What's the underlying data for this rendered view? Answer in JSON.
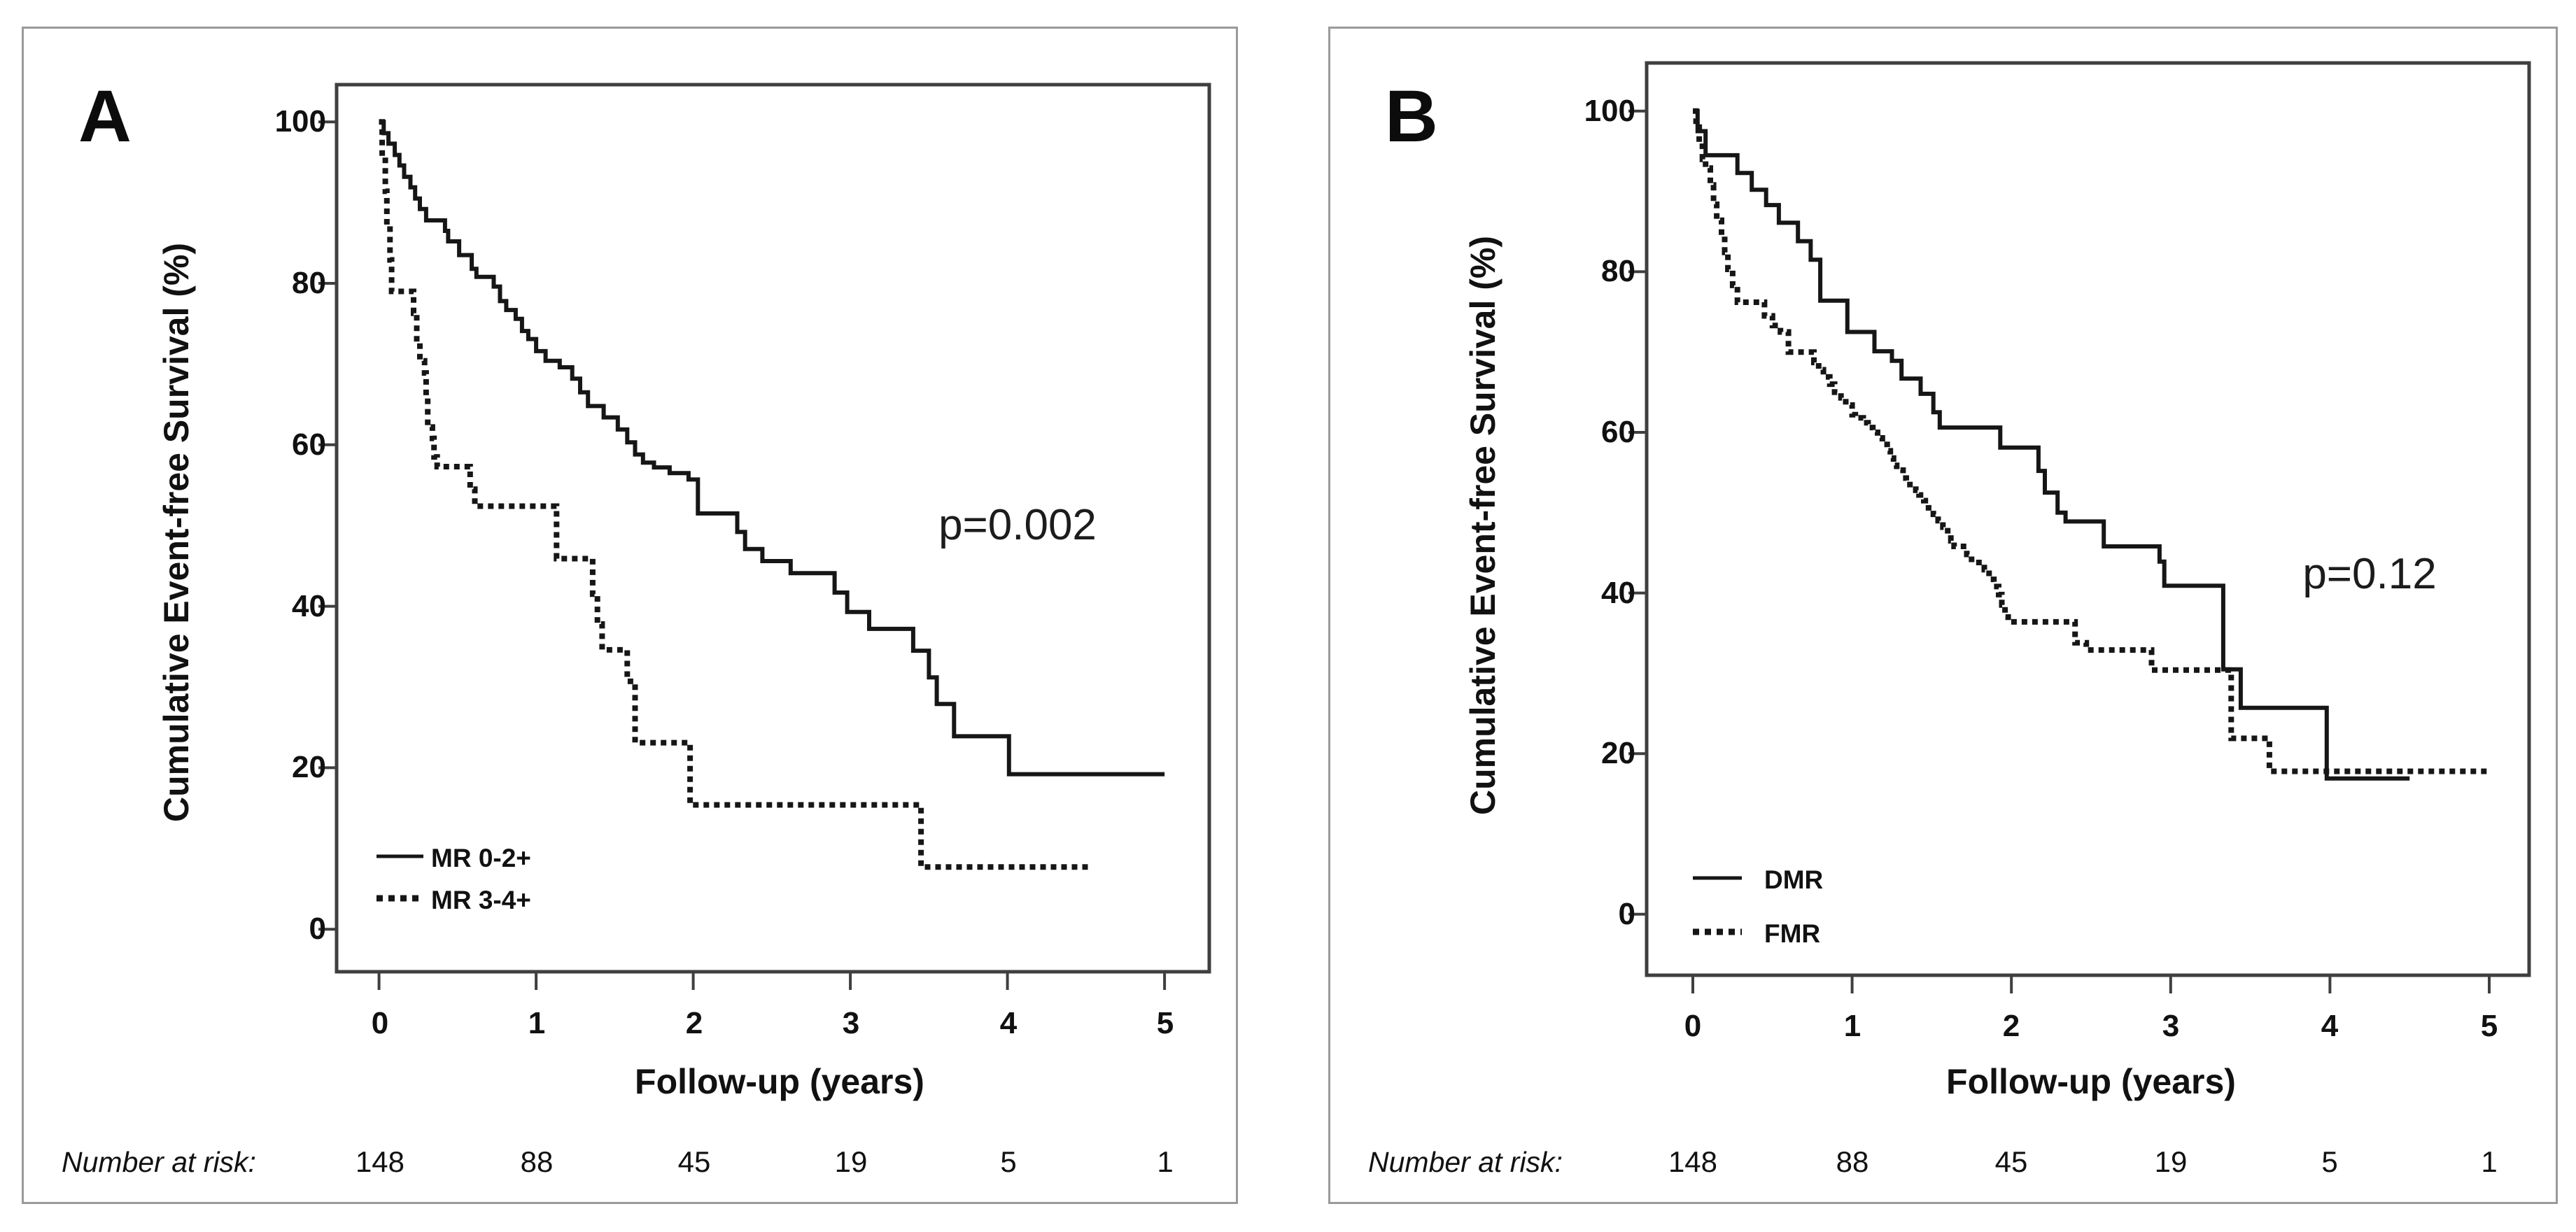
{
  "figure": {
    "background": "#ffffff",
    "panels": [
      {
        "label": "A"
      },
      {
        "label": "B"
      }
    ]
  },
  "style_colors": {
    "curve": "#161616",
    "frame": "#3f3f3f",
    "panel_border": "#9a9a9a",
    "text": "#111111"
  },
  "chart_data": [
    {
      "type": "line",
      "subtype": "kaplan_meier_step",
      "panel_label": "A",
      "xlabel": "Follow-up (years)",
      "ylabel": "Cumulative Event-free Survival (%)",
      "xlim": [
        0,
        5.3
      ],
      "ylim": [
        -6,
        105
      ],
      "xticks": [
        0,
        1,
        2,
        3,
        4,
        5
      ],
      "yticks": [
        100,
        80,
        60,
        40,
        20,
        0
      ],
      "grid": false,
      "annotation": "p=0.002",
      "legend_position": "lower-left",
      "number_at_risk": {
        "label": "Number at risk:",
        "times": [
          0,
          1,
          2,
          3,
          4,
          5
        ],
        "values": [
          148,
          88,
          45,
          19,
          5,
          1
        ]
      },
      "series": [
        {
          "name": "MR 0-2+",
          "style": "solid",
          "points": [
            [
              0,
              100
            ],
            [
              0.03,
              98.6
            ],
            [
              0.06,
              97.3
            ],
            [
              0.1,
              95.9
            ],
            [
              0.13,
              94.6
            ],
            [
              0.16,
              93.2
            ],
            [
              0.2,
              91.9
            ],
            [
              0.23,
              90.5
            ],
            [
              0.26,
              89.2
            ],
            [
              0.3,
              87.8
            ],
            [
              0.42,
              86.5
            ],
            [
              0.44,
              85.2
            ],
            [
              0.51,
              83.5
            ],
            [
              0.59,
              81.8
            ],
            [
              0.62,
              80.8
            ],
            [
              0.73,
              79.6
            ],
            [
              0.77,
              77.8
            ],
            [
              0.81,
              76.7
            ],
            [
              0.87,
              75.6
            ],
            [
              0.91,
              74.1
            ],
            [
              0.95,
              73.1
            ],
            [
              1.0,
              71.6
            ],
            [
              1.06,
              70.4
            ],
            [
              1.15,
              69.6
            ],
            [
              1.23,
              68.2
            ],
            [
              1.28,
              66.5
            ],
            [
              1.33,
              64.8
            ],
            [
              1.43,
              63.4
            ],
            [
              1.52,
              61.9
            ],
            [
              1.58,
              60.3
            ],
            [
              1.63,
              58.8
            ],
            [
              1.68,
              57.8
            ],
            [
              1.75,
              57.2
            ],
            [
              1.85,
              56.5
            ],
            [
              1.97,
              55.7
            ],
            [
              2.03,
              51.5
            ],
            [
              2.28,
              49.2
            ],
            [
              2.33,
              47.1
            ],
            [
              2.44,
              45.6
            ],
            [
              2.62,
              44.1
            ],
            [
              2.9,
              41.7
            ],
            [
              2.98,
              39.3
            ],
            [
              3.12,
              37.2
            ],
            [
              3.4,
              34.5
            ],
            [
              3.5,
              31.2
            ],
            [
              3.55,
              27.9
            ],
            [
              3.66,
              23.9
            ],
            [
              4.01,
              19.2
            ],
            [
              5,
              19.2
            ]
          ]
        },
        {
          "name": "MR 3-4+",
          "style": "dashed",
          "points": [
            [
              0,
              100
            ],
            [
              0.02,
              95.7
            ],
            [
              0.04,
              91.4
            ],
            [
              0.05,
              87.1
            ],
            [
              0.07,
              82.9
            ],
            [
              0.08,
              79
            ],
            [
              0.22,
              76.3
            ],
            [
              0.24,
              72.7
            ],
            [
              0.26,
              70.4
            ],
            [
              0.29,
              68.9
            ],
            [
              0.3,
              66
            ],
            [
              0.31,
              62.2
            ],
            [
              0.34,
              60.8
            ],
            [
              0.35,
              58.5
            ],
            [
              0.37,
              57.3
            ],
            [
              0.58,
              54.5
            ],
            [
              0.61,
              52.4
            ],
            [
              1.13,
              45.9
            ],
            [
              1.36,
              41.5
            ],
            [
              1.39,
              37.8
            ],
            [
              1.42,
              34.6
            ],
            [
              1.58,
              30.7
            ],
            [
              1.63,
              23.1
            ],
            [
              1.98,
              15.4
            ],
            [
              3.45,
              7.7
            ],
            [
              4.53,
              7.7
            ]
          ]
        }
      ]
    },
    {
      "type": "line",
      "subtype": "kaplan_meier_step",
      "panel_label": "B",
      "xlabel": "Follow-up (years)",
      "ylabel": "Cumulative Event-free Survival (%)",
      "xlim": [
        0,
        5.3
      ],
      "ylim": [
        -7,
        105
      ],
      "xticks": [
        0,
        1,
        2,
        3,
        4,
        5
      ],
      "yticks": [
        100,
        80,
        60,
        40,
        20,
        0
      ],
      "grid": false,
      "annotation": "p=0.12",
      "legend_position": "lower-left",
      "number_at_risk": {
        "label": "Number at risk:",
        "times": [
          0,
          1,
          2,
          3,
          4,
          5
        ],
        "values": [
          148,
          88,
          45,
          19,
          5,
          1
        ]
      },
      "series": [
        {
          "name": "DMR",
          "style": "solid",
          "points": [
            [
              0,
              100
            ],
            [
              0.03,
              97.5
            ],
            [
              0.08,
              94.5
            ],
            [
              0.28,
              92.3
            ],
            [
              0.37,
              90.2
            ],
            [
              0.46,
              88.3
            ],
            [
              0.54,
              86.1
            ],
            [
              0.66,
              83.8
            ],
            [
              0.74,
              81.5
            ],
            [
              0.8,
              76.4
            ],
            [
              0.97,
              72.5
            ],
            [
              1.14,
              70.1
            ],
            [
              1.25,
              68.9
            ],
            [
              1.31,
              66.7
            ],
            [
              1.43,
              64.8
            ],
            [
              1.51,
              62.5
            ],
            [
              1.55,
              60.6
            ],
            [
              1.93,
              58.1
            ],
            [
              2.17,
              55.2
            ],
            [
              2.21,
              52.5
            ],
            [
              2.29,
              50
            ],
            [
              2.34,
              48.9
            ],
            [
              2.58,
              45.8
            ],
            [
              2.93,
              43.9
            ],
            [
              2.96,
              40.9
            ],
            [
              3.33,
              30.5
            ],
            [
              3.44,
              25.7
            ],
            [
              3.98,
              16.9
            ],
            [
              4.5,
              16.9
            ]
          ]
        },
        {
          "name": "FMR",
          "style": "dashed",
          "points": [
            [
              0,
              100
            ],
            [
              0.02,
              98
            ],
            [
              0.04,
              96
            ],
            [
              0.06,
              94
            ],
            [
              0.08,
              92.9
            ],
            [
              0.11,
              90.8
            ],
            [
              0.13,
              88.4
            ],
            [
              0.15,
              86.4
            ],
            [
              0.18,
              84.4
            ],
            [
              0.2,
              82.4
            ],
            [
              0.22,
              80.3
            ],
            [
              0.25,
              78.3
            ],
            [
              0.28,
              76.2
            ],
            [
              0.45,
              74.5
            ],
            [
              0.5,
              73.3
            ],
            [
              0.55,
              72.5
            ],
            [
              0.6,
              70
            ],
            [
              0.76,
              68.7
            ],
            [
              0.79,
              67.8
            ],
            [
              0.82,
              66.9
            ],
            [
              0.86,
              66
            ],
            [
              0.89,
              65
            ],
            [
              0.93,
              64.3
            ],
            [
              0.96,
              63.4
            ],
            [
              1.0,
              62.2
            ],
            [
              1.02,
              61.8
            ],
            [
              1.07,
              61.2
            ],
            [
              1.1,
              60.6
            ],
            [
              1.13,
              60
            ],
            [
              1.16,
              59.3
            ],
            [
              1.19,
              58.5
            ],
            [
              1.22,
              57.7
            ],
            [
              1.24,
              56.8
            ],
            [
              1.26,
              55.9
            ],
            [
              1.28,
              55.3
            ],
            [
              1.32,
              54.3
            ],
            [
              1.34,
              53.5
            ],
            [
              1.4,
              52.8
            ],
            [
              1.42,
              52.2
            ],
            [
              1.45,
              51.5
            ],
            [
              1.48,
              50.6
            ],
            [
              1.51,
              49.8
            ],
            [
              1.54,
              49
            ],
            [
              1.57,
              48.2
            ],
            [
              1.6,
              47.3
            ],
            [
              1.62,
              46.5
            ],
            [
              1.64,
              45.8
            ],
            [
              1.72,
              44.8
            ],
            [
              1.75,
              43.8
            ],
            [
              1.83,
              42.9
            ],
            [
              1.86,
              41.7
            ],
            [
              1.89,
              40.8
            ],
            [
              1.92,
              39.8
            ],
            [
              1.94,
              38.5
            ],
            [
              1.96,
              37
            ],
            [
              1.98,
              36.4
            ],
            [
              2.4,
              33.8
            ],
            [
              2.47,
              32.9
            ],
            [
              2.88,
              30.4
            ],
            [
              3.38,
              21.9
            ],
            [
              3.62,
              17.8
            ],
            [
              5,
              17.8
            ]
          ]
        }
      ]
    }
  ]
}
